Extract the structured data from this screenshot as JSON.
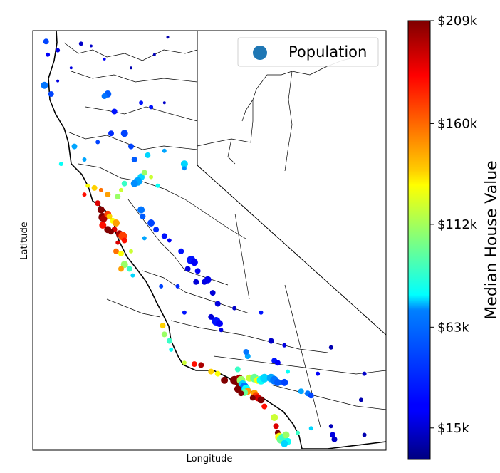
{
  "chart_data": {
    "type": "scatter",
    "title": "",
    "xlabel": "Longitude",
    "ylabel": "Latitude",
    "xlim": [
      -124.55,
      -113.95
    ],
    "ylim": [
      32.45,
      42.05
    ],
    "legend": {
      "position": "top-right",
      "entries": [
        "Population"
      ]
    },
    "legend_marker_color": "#1f77b4",
    "colorbar": {
      "label": "Median House Value",
      "colormap": "jet",
      "range": [
        0,
        209000
      ],
      "ticks": [
        {
          "value": 15000,
          "label": "$15k"
        },
        {
          "value": 63000,
          "label": "$63k"
        },
        {
          "value": 112000,
          "label": "$112k"
        },
        {
          "value": 160000,
          "label": "$160k"
        },
        {
          "value": 209000,
          "label": "$209k"
        }
      ]
    },
    "series": [
      {
        "name": "Population",
        "points": [
          [
            -124.15,
            41.8,
            40000,
            4
          ],
          [
            -124.1,
            41.5,
            25000,
            3
          ],
          [
            -124.2,
            40.8,
            50000,
            5
          ],
          [
            -124.0,
            40.6,
            40000,
            4
          ],
          [
            -123.8,
            40.9,
            20000,
            2
          ],
          [
            -123.4,
            41.2,
            20000,
            2
          ],
          [
            -122.8,
            41.7,
            15000,
            2
          ],
          [
            -122.4,
            41.4,
            25000,
            2
          ],
          [
            -122.3,
            40.6,
            45000,
            5
          ],
          [
            -122.1,
            40.2,
            30000,
            4
          ],
          [
            -121.6,
            41.2,
            10000,
            2
          ],
          [
            -120.9,
            41.5,
            12000,
            2
          ],
          [
            -121.0,
            40.3,
            30000,
            3
          ],
          [
            -120.6,
            40.4,
            15000,
            2
          ],
          [
            -120.5,
            41.9,
            10000,
            2
          ],
          [
            -123.3,
            39.4,
            60000,
            4
          ],
          [
            -123.7,
            39.0,
            80000,
            3
          ],
          [
            -123.0,
            39.1,
            60000,
            3
          ],
          [
            -122.6,
            39.5,
            40000,
            3
          ],
          [
            -122.2,
            39.7,
            35000,
            4
          ],
          [
            -121.8,
            39.7,
            40000,
            5
          ],
          [
            -121.6,
            39.4,
            40000,
            4
          ],
          [
            -121.5,
            39.1,
            45000,
            4
          ],
          [
            -121.1,
            39.2,
            70000,
            4
          ],
          [
            -120.6,
            39.3,
            60000,
            3
          ],
          [
            -120.0,
            39.0,
            70000,
            5
          ],
          [
            -120.0,
            38.9,
            55000,
            3
          ],
          [
            -121.3,
            38.7,
            70000,
            5
          ],
          [
            -121.4,
            38.6,
            60000,
            6
          ],
          [
            -121.5,
            38.55,
            55000,
            5
          ],
          [
            -121.2,
            38.8,
            110000,
            4
          ],
          [
            -121.0,
            38.7,
            120000,
            3
          ],
          [
            -120.8,
            38.5,
            80000,
            3
          ],
          [
            -121.8,
            38.55,
            90000,
            4
          ],
          [
            -121.9,
            38.4,
            120000,
            3
          ],
          [
            -122.0,
            38.25,
            110000,
            4
          ],
          [
            -122.3,
            38.3,
            150000,
            4
          ],
          [
            -122.5,
            38.4,
            160000,
            3
          ],
          [
            -122.7,
            38.45,
            140000,
            4
          ],
          [
            -122.9,
            38.5,
            130000,
            3
          ],
          [
            -123.0,
            38.3,
            180000,
            3
          ],
          [
            -122.6,
            38.1,
            190000,
            4
          ],
          [
            -122.5,
            37.95,
            209000,
            5
          ],
          [
            -122.45,
            37.78,
            209000,
            6
          ],
          [
            -122.42,
            37.75,
            200000,
            5
          ],
          [
            -122.3,
            37.85,
            170000,
            5
          ],
          [
            -122.25,
            37.8,
            140000,
            4
          ],
          [
            -122.15,
            37.7,
            130000,
            4
          ],
          [
            -122.05,
            37.65,
            150000,
            5
          ],
          [
            -122.1,
            37.5,
            190000,
            4
          ],
          [
            -122.2,
            37.45,
            209000,
            4
          ],
          [
            -122.3,
            37.5,
            209000,
            5
          ],
          [
            -122.45,
            37.6,
            180000,
            5
          ],
          [
            -121.95,
            37.4,
            200000,
            5
          ],
          [
            -121.85,
            37.35,
            170000,
            6
          ],
          [
            -121.8,
            37.25,
            180000,
            4
          ],
          [
            -122.0,
            37.2,
            190000,
            3
          ],
          [
            -122.05,
            37.0,
            160000,
            4
          ],
          [
            -121.9,
            36.95,
            130000,
            4
          ],
          [
            -121.6,
            37.0,
            120000,
            3
          ],
          [
            -121.8,
            36.7,
            110000,
            5
          ],
          [
            -121.65,
            36.6,
            90000,
            4
          ],
          [
            -121.9,
            36.6,
            150000,
            4
          ],
          [
            -121.55,
            36.45,
            70000,
            3
          ],
          [
            -121.2,
            37.3,
            60000,
            3
          ],
          [
            -121.3,
            37.95,
            50000,
            5
          ],
          [
            -121.25,
            37.8,
            45000,
            4
          ],
          [
            -121.0,
            37.65,
            40000,
            5
          ],
          [
            -120.85,
            37.5,
            35000,
            4
          ],
          [
            -120.6,
            37.35,
            30000,
            4
          ],
          [
            -120.45,
            37.25,
            25000,
            3
          ],
          [
            -120.1,
            37.0,
            30000,
            4
          ],
          [
            -119.8,
            36.8,
            30000,
            6
          ],
          [
            -119.7,
            36.75,
            25000,
            5
          ],
          [
            -119.9,
            36.6,
            20000,
            4
          ],
          [
            -119.6,
            36.55,
            25000,
            4
          ],
          [
            -119.4,
            36.3,
            20000,
            4
          ],
          [
            -119.3,
            36.35,
            22000,
            5
          ],
          [
            -119.65,
            36.3,
            18000,
            4
          ],
          [
            -119.15,
            36.05,
            18000,
            4
          ],
          [
            -119.0,
            35.8,
            20000,
            4
          ],
          [
            -119.05,
            35.4,
            30000,
            6
          ],
          [
            -118.95,
            35.35,
            25000,
            5
          ],
          [
            -119.2,
            35.5,
            18000,
            4
          ],
          [
            -118.9,
            35.2,
            20000,
            3
          ],
          [
            -118.5,
            35.7,
            15000,
            3
          ],
          [
            -120.7,
            36.2,
            40000,
            3
          ],
          [
            -120.2,
            36.2,
            35000,
            3
          ],
          [
            -120.0,
            35.6,
            30000,
            3
          ],
          [
            -120.65,
            35.3,
            140000,
            4
          ],
          [
            -120.6,
            35.1,
            110000,
            4
          ],
          [
            -120.45,
            34.95,
            90000,
            4
          ],
          [
            -120.4,
            34.75,
            80000,
            3
          ],
          [
            -120.0,
            34.45,
            120000,
            3
          ],
          [
            -119.7,
            34.42,
            180000,
            4
          ],
          [
            -119.5,
            34.4,
            200000,
            4
          ],
          [
            -119.2,
            34.25,
            140000,
            4
          ],
          [
            -119.0,
            34.2,
            130000,
            4
          ],
          [
            -118.8,
            34.05,
            209000,
            5
          ],
          [
            -118.5,
            34.05,
            209000,
            6
          ],
          [
            -118.4,
            34.0,
            209000,
            5
          ],
          [
            -118.35,
            34.1,
            200000,
            5
          ],
          [
            -118.3,
            34.05,
            110000,
            6
          ],
          [
            -118.25,
            33.95,
            70000,
            6
          ],
          [
            -118.2,
            33.9,
            50000,
            6
          ],
          [
            -118.15,
            33.85,
            80000,
            6
          ],
          [
            -118.1,
            33.8,
            150000,
            5
          ],
          [
            -118.2,
            33.77,
            100000,
            5
          ],
          [
            -118.3,
            33.75,
            209000,
            4
          ],
          [
            -118.4,
            33.85,
            209000,
            5
          ],
          [
            -118.05,
            34.1,
            120000,
            5
          ],
          [
            -117.9,
            34.1,
            100000,
            6
          ],
          [
            -117.8,
            34.05,
            130000,
            5
          ],
          [
            -117.7,
            34.05,
            80000,
            6
          ],
          [
            -117.6,
            34.1,
            70000,
            6
          ],
          [
            -117.4,
            34.1,
            60000,
            6
          ],
          [
            -117.3,
            34.05,
            50000,
            6
          ],
          [
            -117.2,
            34.0,
            45000,
            5
          ],
          [
            -117.0,
            34.0,
            40000,
            5
          ],
          [
            -117.3,
            34.5,
            30000,
            4
          ],
          [
            -117.2,
            34.45,
            25000,
            4
          ],
          [
            -117.0,
            34.85,
            20000,
            3
          ],
          [
            -116.9,
            34.25,
            80000,
            3
          ],
          [
            -116.5,
            33.8,
            60000,
            4
          ],
          [
            -116.3,
            33.75,
            50000,
            4
          ],
          [
            -116.2,
            33.7,
            40000,
            4
          ],
          [
            -117.9,
            33.75,
            150000,
            5
          ],
          [
            -117.85,
            33.7,
            170000,
            5
          ],
          [
            -117.8,
            33.65,
            190000,
            5
          ],
          [
            -117.7,
            33.6,
            209000,
            5
          ],
          [
            -117.95,
            33.65,
            209000,
            4
          ],
          [
            -117.6,
            33.45,
            180000,
            4
          ],
          [
            -117.3,
            33.2,
            120000,
            5
          ],
          [
            -117.25,
            33.0,
            190000,
            4
          ],
          [
            -117.2,
            32.85,
            209000,
            4
          ],
          [
            -117.15,
            32.75,
            130000,
            6
          ],
          [
            -117.1,
            32.7,
            100000,
            6
          ],
          [
            -117.05,
            32.75,
            90000,
            5
          ],
          [
            -116.95,
            32.8,
            110000,
            5
          ],
          [
            -116.9,
            32.65,
            80000,
            5
          ],
          [
            -117.0,
            32.6,
            70000,
            5
          ],
          [
            -116.6,
            32.85,
            90000,
            3
          ],
          [
            -116.2,
            32.95,
            70000,
            3
          ],
          [
            -115.55,
            32.8,
            20000,
            4
          ],
          [
            -115.5,
            32.7,
            15000,
            4
          ],
          [
            -115.6,
            33.0,
            12000,
            3
          ],
          [
            -114.6,
            32.8,
            10000,
            3
          ],
          [
            -114.7,
            33.6,
            10000,
            3
          ],
          [
            -114.6,
            34.2,
            15000,
            3
          ],
          [
            -115.6,
            34.8,
            10000,
            3
          ],
          [
            -116.0,
            34.2,
            25000,
            3
          ],
          [
            -117.7,
            35.6,
            30000,
            3
          ],
          [
            -118.1,
            34.6,
            60000,
            4
          ],
          [
            -118.15,
            34.7,
            50000,
            4
          ],
          [
            -118.4,
            34.3,
            90000,
            4
          ],
          [
            -117.4,
            34.95,
            15000,
            4
          ],
          [
            -122.4,
            40.55,
            50000,
            4
          ],
          [
            -121.3,
            40.4,
            30000,
            3
          ],
          [
            -123.8,
            41.6,
            20000,
            3
          ],
          [
            -123.1,
            41.75,
            15000,
            3
          ]
        ]
      }
    ]
  }
}
